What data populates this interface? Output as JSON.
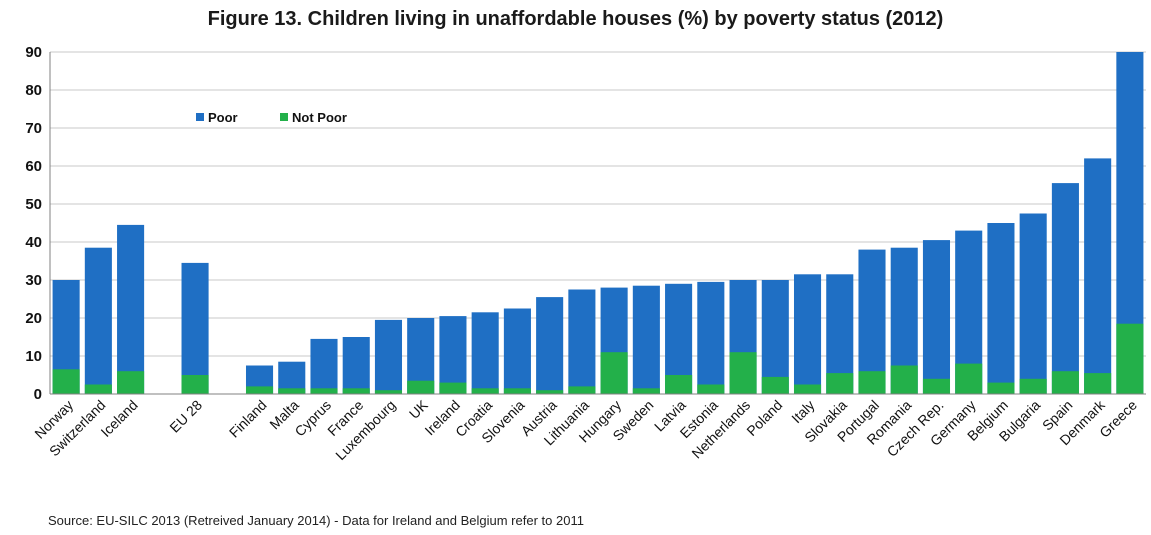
{
  "chart_data": {
    "type": "bar",
    "title": "Figure 13. Children living in unaffordable houses (%) by poverty status (2012)",
    "xlabel": "",
    "ylabel": "",
    "ylim": [
      0,
      90
    ],
    "yticks": [
      0,
      10,
      20,
      30,
      40,
      50,
      60,
      70,
      80,
      90
    ],
    "grid": true,
    "legend_position": "top-left",
    "categories": [
      "Norway",
      "Switzerland",
      "Iceland",
      "",
      "EU 28",
      "",
      "Finland",
      "Malta",
      "Cyprus",
      "France",
      "Luxembourg",
      "UK",
      "Ireland",
      "Croatia",
      "Slovenia",
      "Austria",
      "Lithuania",
      "Hungary",
      "Sweden",
      "Latvia",
      "Estonia",
      "Netherlands",
      "Poland",
      "Italy",
      "Slovakia",
      "Portugal",
      "Romania",
      "Czech Rep.",
      "Germany",
      "Belgium",
      "Bulgaria",
      "Spain",
      "Denmark",
      "Greece"
    ],
    "series": [
      {
        "name": "Poor",
        "color": "#1F6FC4",
        "values": [
          30,
          38.5,
          44.5,
          null,
          34.5,
          null,
          7.5,
          8.5,
          14.5,
          15,
          19.5,
          20,
          20.5,
          21.5,
          22.5,
          25.5,
          27.5,
          28,
          28.5,
          29,
          29.5,
          30,
          30,
          31.5,
          31.5,
          38,
          38.5,
          40.5,
          43,
          45,
          47.5,
          55.5,
          62,
          90
        ]
      },
      {
        "name": "Not Poor",
        "color": "#23B04A",
        "values": [
          6.5,
          2.5,
          6,
          null,
          5,
          null,
          2,
          1.5,
          1.5,
          1.5,
          1,
          3.5,
          3,
          1.5,
          1.5,
          1,
          2,
          11,
          1.5,
          5,
          2.5,
          11,
          4.5,
          2.5,
          5.5,
          6,
          7.5,
          4,
          8,
          3,
          4,
          6,
          5.5,
          18.5
        ]
      }
    ],
    "source_note": "Source: EU-SILC 2013 (Retreived January 2014) - Data for Ireland and Belgium refer to 2011"
  }
}
